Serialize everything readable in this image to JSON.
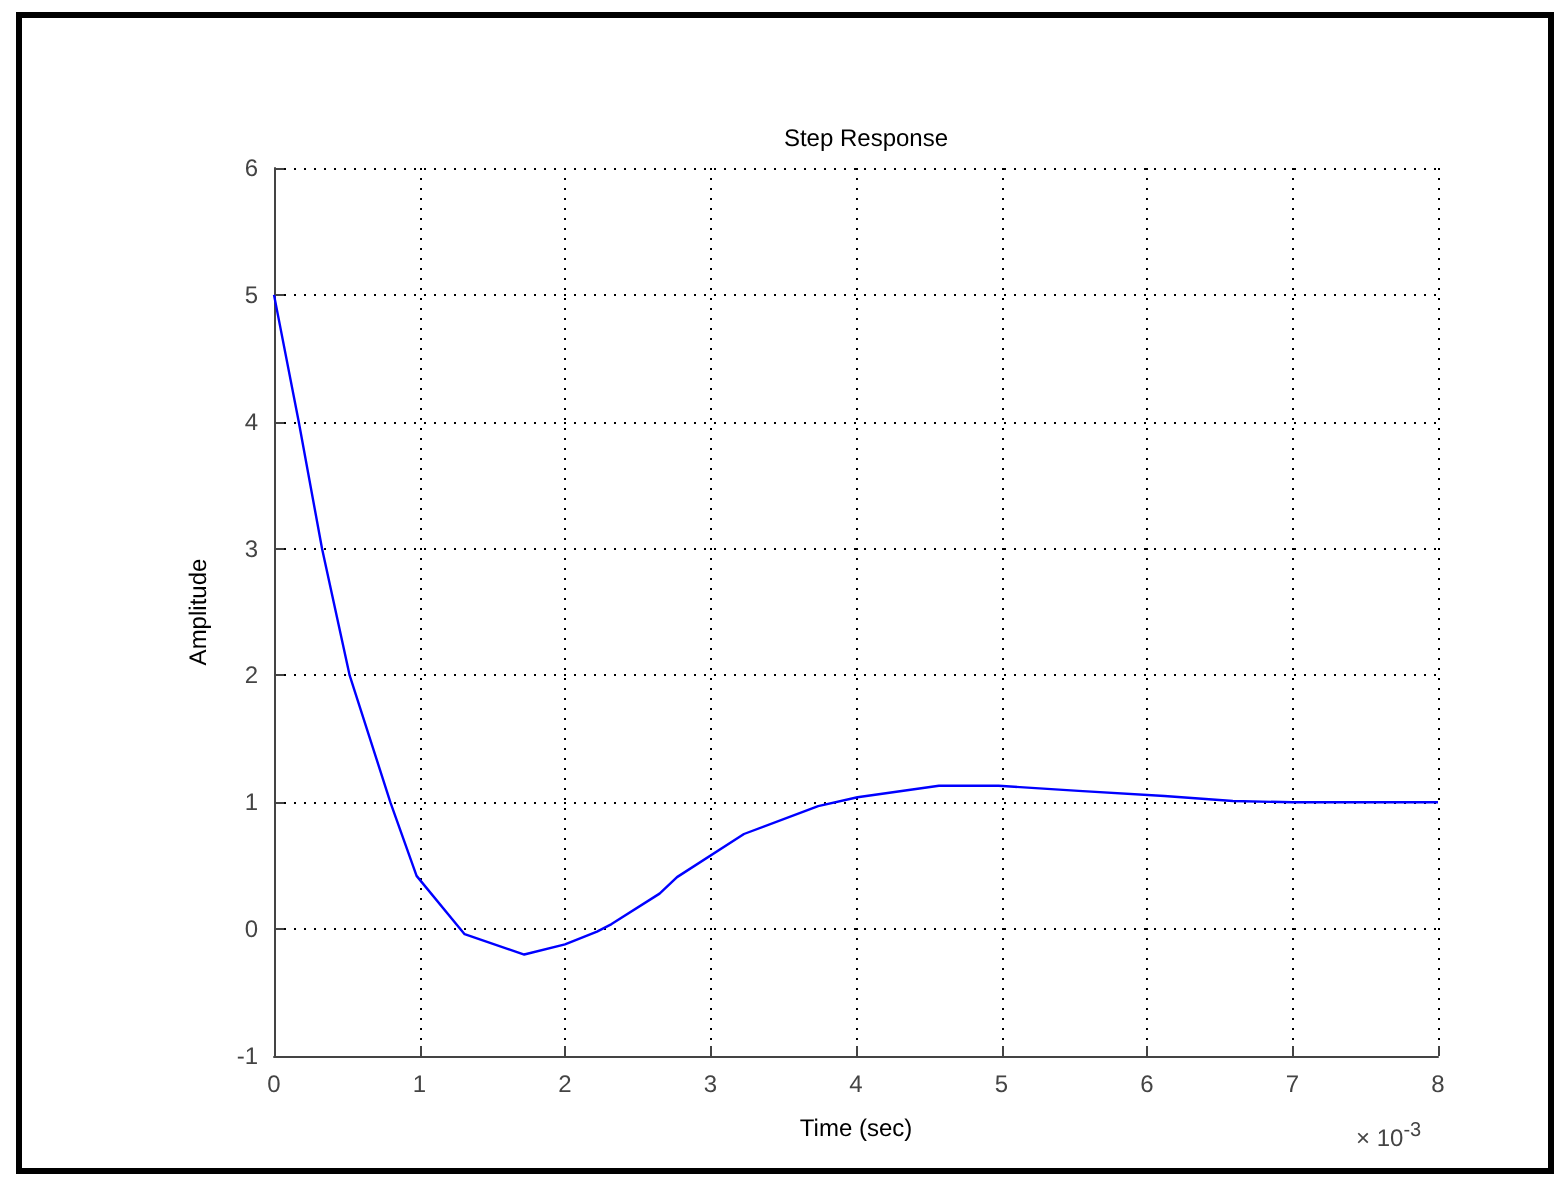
{
  "chart_data": {
    "type": "line",
    "title": "Step Response",
    "xlabel": "Time (sec)",
    "ylabel": "Amplitude",
    "annotations": [
      "× 10$^{-3}$"
    ],
    "x": [
      0,
      0.17,
      0.33,
      0.52,
      0.8,
      0.98,
      1.31,
      1.72,
      2.0,
      2.22,
      2.32,
      2.65,
      2.77,
      3.23,
      3.74,
      4.01,
      4.57,
      4.98,
      5.53,
      6.12,
      6.59,
      7.0,
      8.0
    ],
    "series": [
      {
        "color": "#0000ff",
        "values": [
          5,
          4,
          3,
          2,
          1,
          0.42,
          -0.04,
          -0.2,
          -0.12,
          -0.02,
          0.04,
          0.28,
          0.41,
          0.75,
          0.97,
          1.04,
          1.13,
          1.13,
          1.09,
          1.05,
          1.01,
          1.0,
          1.0
        ]
      }
    ],
    "xlim": [
      0,
      8
    ],
    "xticks": [
      0,
      1,
      2,
      3,
      4,
      5,
      6,
      7,
      8
    ],
    "ylim": [
      -1,
      6
    ],
    "yticks": [
      -1,
      0,
      1,
      2,
      3,
      4,
      5,
      6
    ],
    "grid": true,
    "marker": "none",
    "line_style": "solid"
  }
}
